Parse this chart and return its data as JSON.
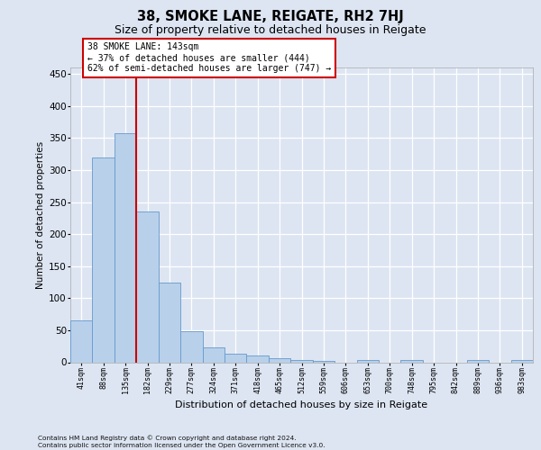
{
  "title1": "38, SMOKE LANE, REIGATE, RH2 7HJ",
  "title2": "Size of property relative to detached houses in Reigate",
  "xlabel": "Distribution of detached houses by size in Reigate",
  "ylabel": "Number of detached properties",
  "categories": [
    "41sqm",
    "88sqm",
    "135sqm",
    "182sqm",
    "229sqm",
    "277sqm",
    "324sqm",
    "371sqm",
    "418sqm",
    "465sqm",
    "512sqm",
    "559sqm",
    "606sqm",
    "653sqm",
    "700sqm",
    "748sqm",
    "795sqm",
    "842sqm",
    "889sqm",
    "936sqm",
    "983sqm"
  ],
  "values": [
    65,
    320,
    358,
    235,
    125,
    48,
    23,
    14,
    10,
    6,
    4,
    2,
    0,
    4,
    0,
    4,
    0,
    0,
    3,
    0,
    3
  ],
  "bar_color": "#b8d0ea",
  "bar_edge_color": "#6699cc",
  "vline_x": 2.5,
  "vline_color": "#cc0000",
  "annotation_line1": "38 SMOKE LANE: 143sqm",
  "annotation_line2": "← 37% of detached houses are smaller (444)",
  "annotation_line3": "62% of semi-detached houses are larger (747) →",
  "ylim": [
    0,
    460
  ],
  "yticks": [
    0,
    50,
    100,
    150,
    200,
    250,
    300,
    350,
    400,
    450
  ],
  "background_color": "#dde5f2",
  "grid_color": "white",
  "footnote_line1": "Contains HM Land Registry data © Crown copyright and database right 2024.",
  "footnote_line2": "Contains public sector information licensed under the Open Government Licence v3.0."
}
